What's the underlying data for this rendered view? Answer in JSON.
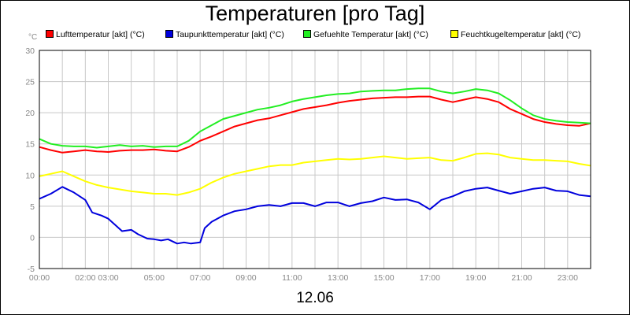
{
  "chart_data": {
    "type": "line",
    "title": "Temperaturen [pro Tag]",
    "unit": "°C",
    "date": "12.06",
    "ylim": [
      -5,
      30
    ],
    "yticks": [
      -5,
      0,
      5,
      10,
      15,
      20,
      25,
      30
    ],
    "xlim": [
      0,
      24
    ],
    "xtick_labels": [
      {
        "h": 0,
        "label": "00:00"
      },
      {
        "h": 2,
        "label": "02:00"
      },
      {
        "h": 3,
        "label": "03:00"
      },
      {
        "h": 5,
        "label": "05:00"
      },
      {
        "h": 7,
        "label": "07:00"
      },
      {
        "h": 9,
        "label": "09:00"
      },
      {
        "h": 11,
        "label": "11:00"
      },
      {
        "h": 13,
        "label": "13:00"
      },
      {
        "h": 15,
        "label": "15:00"
      },
      {
        "h": 17,
        "label": "17:00"
      },
      {
        "h": 19,
        "label": "19:00"
      },
      {
        "h": 21,
        "label": "21:00"
      },
      {
        "h": 23,
        "label": "23:00"
      }
    ],
    "grid": true,
    "legend_position": "top",
    "series": [
      {
        "name": "Lufttemperatur [akt] (°C)",
        "color": "#ff0000",
        "x": [
          0,
          0.5,
          1,
          1.5,
          2,
          2.5,
          3,
          3.5,
          4,
          4.5,
          5,
          5.5,
          6,
          6.5,
          7,
          7.5,
          8,
          8.5,
          9,
          9.5,
          10,
          10.5,
          11,
          11.5,
          12,
          12.5,
          13,
          13.5,
          14,
          14.5,
          15,
          15.5,
          16,
          16.5,
          17,
          17.5,
          18,
          18.5,
          19,
          19.5,
          20,
          20.5,
          21,
          21.5,
          22,
          22.5,
          23,
          23.5,
          24
        ],
        "y": [
          14.5,
          14.0,
          13.6,
          13.8,
          14.0,
          13.8,
          13.7,
          13.9,
          14.0,
          14.0,
          14.1,
          13.9,
          13.8,
          14.5,
          15.5,
          16.2,
          17.0,
          17.8,
          18.3,
          18.8,
          19.1,
          19.6,
          20.1,
          20.6,
          20.9,
          21.2,
          21.6,
          21.9,
          22.1,
          22.3,
          22.4,
          22.5,
          22.5,
          22.6,
          22.6,
          22.1,
          21.7,
          22.1,
          22.5,
          22.2,
          21.7,
          20.6,
          19.8,
          19.0,
          18.5,
          18.2,
          18.0,
          17.9,
          18.3
        ]
      },
      {
        "name": "Taupunkttemperatur [akt] (°C)",
        "color": "#0000dd",
        "x": [
          0,
          0.5,
          1,
          1.5,
          2,
          2.3,
          2.7,
          3,
          3.3,
          3.6,
          4,
          4.3,
          4.7,
          5,
          5.3,
          5.6,
          6,
          6.3,
          6.6,
          7,
          7.2,
          7.5,
          8,
          8.5,
          9,
          9.5,
          10,
          10.5,
          11,
          11.5,
          12,
          12.5,
          13,
          13.5,
          14,
          14.5,
          15,
          15.5,
          16,
          16.5,
          17,
          17.5,
          18,
          18.5,
          19,
          19.5,
          20,
          20.5,
          21,
          21.5,
          22,
          22.5,
          23,
          23.5,
          24
        ],
        "y": [
          6.2,
          7.0,
          8.1,
          7.2,
          6.0,
          4.0,
          3.5,
          3.0,
          2.0,
          1.0,
          1.2,
          0.5,
          -0.2,
          -0.3,
          -0.5,
          -0.3,
          -1.0,
          -0.8,
          -1.0,
          -0.8,
          1.5,
          2.5,
          3.5,
          4.2,
          4.5,
          5.0,
          5.2,
          5.0,
          5.5,
          5.5,
          5.0,
          5.6,
          5.6,
          5.0,
          5.5,
          5.8,
          6.4,
          6.0,
          6.1,
          5.6,
          4.5,
          6.0,
          6.6,
          7.4,
          7.8,
          8.0,
          7.5,
          7.0,
          7.4,
          7.8,
          8.0,
          7.5,
          7.4,
          6.8,
          6.6
        ]
      },
      {
        "name": "Gefuehlte Temperatur [akt] (°C)",
        "color": "#22ee22",
        "x": [
          0,
          0.5,
          1,
          1.5,
          2,
          2.5,
          3,
          3.5,
          4,
          4.5,
          5,
          5.5,
          6,
          6.5,
          7,
          7.5,
          8,
          8.5,
          9,
          9.5,
          10,
          10.5,
          11,
          11.5,
          12,
          12.5,
          13,
          13.5,
          14,
          14.5,
          15,
          15.5,
          16,
          16.5,
          17,
          17.5,
          18,
          18.5,
          19,
          19.5,
          20,
          20.5,
          21,
          21.5,
          22,
          22.5,
          23,
          23.5,
          24
        ],
        "y": [
          15.8,
          15.0,
          14.7,
          14.6,
          14.6,
          14.4,
          14.6,
          14.8,
          14.6,
          14.7,
          14.5,
          14.6,
          14.6,
          15.5,
          17.0,
          18.0,
          19.0,
          19.5,
          20.0,
          20.5,
          20.8,
          21.2,
          21.8,
          22.2,
          22.5,
          22.8,
          23.0,
          23.1,
          23.4,
          23.5,
          23.6,
          23.6,
          23.8,
          23.9,
          23.9,
          23.4,
          23.1,
          23.4,
          23.8,
          23.6,
          23.1,
          22.0,
          20.7,
          19.6,
          19.0,
          18.7,
          18.5,
          18.4,
          18.3
        ]
      },
      {
        "name": "Feuchtkugeltemperatur [akt] (°C)",
        "color": "#ffff00",
        "x": [
          0,
          0.5,
          1,
          1.5,
          2,
          2.5,
          3,
          3.5,
          4,
          4.5,
          5,
          5.5,
          6,
          6.5,
          7,
          7.5,
          8,
          8.5,
          9,
          9.5,
          10,
          10.5,
          11,
          11.5,
          12,
          12.5,
          13,
          13.5,
          14,
          14.5,
          15,
          15.5,
          16,
          16.5,
          17,
          17.5,
          18,
          18.5,
          19,
          19.5,
          20,
          20.5,
          21,
          21.5,
          22,
          22.5,
          23,
          23.5,
          24
        ],
        "y": [
          9.8,
          10.2,
          10.6,
          9.8,
          9.0,
          8.4,
          8.0,
          7.7,
          7.4,
          7.2,
          7.0,
          7.0,
          6.8,
          7.2,
          7.8,
          8.8,
          9.6,
          10.2,
          10.6,
          11.0,
          11.4,
          11.6,
          11.6,
          12.0,
          12.2,
          12.4,
          12.6,
          12.5,
          12.6,
          12.8,
          13.0,
          12.8,
          12.6,
          12.7,
          12.8,
          12.4,
          12.3,
          12.8,
          13.4,
          13.5,
          13.3,
          12.8,
          12.6,
          12.4,
          12.4,
          12.3,
          12.2,
          11.8,
          11.5
        ]
      }
    ]
  }
}
